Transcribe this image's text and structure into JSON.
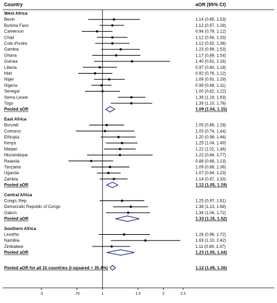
{
  "chart_data": {
    "type": "forest",
    "columns": {
      "left": "Country",
      "right": "aOR (95% CI)"
    },
    "x_scale": "log",
    "xlim": [
      0.5,
      2.5
    ],
    "reference_line": 1,
    "x_ticks": [
      {
        "value": 0.5,
        "label": ".5"
      },
      {
        "value": 0.75,
        "label": ".75"
      },
      {
        "value": 1,
        "label": "1"
      },
      {
        "value": 1.5,
        "label": "1.5"
      },
      {
        "value": 2,
        "label": "2"
      },
      {
        "value": 2.5,
        "label": "2.5"
      }
    ],
    "groups": [
      {
        "name": "West Africa",
        "rows": [
          {
            "label": "Benin",
            "or": 1.14,
            "lo": 0.85,
            "hi": 1.53,
            "text": "1.14 (0.85, 1.53)"
          },
          {
            "label": "Burkina Faso",
            "or": 1.12,
            "lo": 0.97,
            "hi": 1.28,
            "text": "1.12 (0.97, 1.28)"
          },
          {
            "label": "Cameroon",
            "or": 0.94,
            "lo": 0.79,
            "hi": 1.12,
            "text": "0.94 (0.79, 1.12)"
          },
          {
            "label": "Chad",
            "or": 1.12,
            "lo": 0.94,
            "hi": 1.33,
            "text": "1.12 (0.94, 1.33)"
          },
          {
            "label": "Cote d'Ivoire",
            "or": 1.12,
            "lo": 0.92,
            "hi": 1.36,
            "text": "1.12 (0.92, 1.36)"
          },
          {
            "label": "Gambia",
            "or": 1.23,
            "lo": 0.99,
            "hi": 1.53,
            "text": "1.23 (0.99, 1.53)"
          },
          {
            "label": "Ghana",
            "or": 1.17,
            "lo": 0.89,
            "hi": 1.54,
            "text": "1.17 (0.89, 1.54)"
          },
          {
            "label": "Guinea",
            "or": 1.4,
            "lo": 0.91,
            "hi": 2.16,
            "text": "1.40 (0.91, 2.16)"
          },
          {
            "label": "Liberia",
            "or": 0.97,
            "lo": 0.8,
            "hi": 1.18,
            "text": "0.97 (0.80, 1.18)"
          },
          {
            "label": "Mali",
            "or": 0.92,
            "lo": 0.76,
            "hi": 1.12,
            "text": "0.92 (0.76, 1.12)"
          },
          {
            "label": "Niger",
            "or": 1.08,
            "lo": 0.91,
            "hi": 1.29,
            "text": "1.08 (0.91, 1.29)"
          },
          {
            "label": "Nigeria",
            "or": 0.99,
            "lo": 0.88,
            "hi": 1.11,
            "text": "0.99 (0.88, 1.11)"
          },
          {
            "label": "Senegal",
            "or": 1.0,
            "lo": 0.82,
            "hi": 1.22,
            "text": "1.00 (0.82, 1.22)"
          },
          {
            "label": "Sierra Leone",
            "or": 1.39,
            "lo": 1.19,
            "hi": 1.63,
            "text": "1.39 (1.19, 1.63)"
          },
          {
            "label": "Togo",
            "or": 1.39,
            "lo": 1.1,
            "hi": 1.76,
            "text": "1.39 (1.10, 1.76)"
          }
        ],
        "pooled": {
          "label": "Pooled aOR",
          "or": 1.09,
          "lo": 1.04,
          "hi": 1.15,
          "text": "1.09 (1.04, 1.15)"
        }
      },
      {
        "name": "East Africa",
        "rows": [
          {
            "label": "Burundi",
            "or": 1.05,
            "lo": 0.86,
            "hi": 1.28,
            "text": "1.05 (0.86, 1.28)"
          },
          {
            "label": "Comoros",
            "or": 1.03,
            "lo": 0.74,
            "hi": 1.44,
            "text": "1.03 (0.74, 1.44)"
          },
          {
            "label": "Ethiopia",
            "or": 1.2,
            "lo": 0.98,
            "hi": 1.46,
            "text": "1.20 (0.98, 1.46)"
          },
          {
            "label": "Kenya",
            "or": 1.25,
            "lo": 1.04,
            "hi": 1.49,
            "text": "1.25 (1.04, 1.49)"
          },
          {
            "label": "Malawi",
            "or": 1.22,
            "lo": 1.02,
            "hi": 1.46,
            "text": "1.22 (1.02, 1.46)"
          },
          {
            "label": "Mozambique",
            "or": 1.22,
            "lo": 0.84,
            "hi": 1.77,
            "text": "1.22 (0.84, 1.77)"
          },
          {
            "label": "Rwanda",
            "or": 0.88,
            "lo": 0.68,
            "hi": 1.13,
            "text": "0.88 (0.68, 1.13)"
          },
          {
            "label": "Tanzania",
            "or": 1.09,
            "lo": 0.88,
            "hi": 1.36,
            "text": "1.09 (0.88, 1.36)"
          },
          {
            "label": "Uganda",
            "or": 1.07,
            "lo": 0.94,
            "hi": 1.23,
            "text": "1.07 (0.94, 1.23)"
          },
          {
            "label": "Zambia",
            "or": 1.14,
            "lo": 0.97,
            "hi": 1.33,
            "text": "1.14 (0.97, 1.33)"
          }
        ],
        "pooled": {
          "label": "Pooled aOR",
          "or": 1.12,
          "lo": 1.05,
          "hi": 1.19,
          "text": "1.12 (1.05, 1.19)"
        }
      },
      {
        "name": "Central Africa",
        "rows": [
          {
            "label": "Congo, Rep.",
            "or": 1.25,
            "lo": 0.97,
            "hi": 1.61,
            "text": "1.25 (0.97, 1.61)"
          },
          {
            "label": "Democratic Republic of Congo",
            "or": 1.38,
            "lo": 1.13,
            "hi": 1.68,
            "text": "1.38 (1.13, 1.68)"
          },
          {
            "label": "Gabon",
            "or": 1.34,
            "lo": 1.04,
            "hi": 1.72,
            "text": "1.34 (1.04, 1.72)"
          }
        ],
        "pooled": {
          "label": "Pooled aOR",
          "or": 1.33,
          "lo": 1.16,
          "hi": 1.52,
          "text": "1.33 (1.16, 1.52)"
        }
      },
      {
        "name": "Southern Africa",
        "rows": [
          {
            "label": "Lesotho",
            "or": 1.28,
            "lo": 0.96,
            "hi": 1.72,
            "text": "1.28 (0.96, 1.72)"
          },
          {
            "label": "Namibia",
            "or": 1.63,
            "lo": 1.1,
            "hi": 2.42,
            "text": "1.63 (1.10, 2.42)"
          },
          {
            "label": "Zimbabwe",
            "or": 1.11,
            "lo": 0.89,
            "hi": 1.37,
            "text": "1.11 (0.89, 1.37)"
          }
        ],
        "pooled": {
          "label": "Pooled aOR",
          "or": 1.23,
          "lo": 1.05,
          "hi": 1.44,
          "text": "1.23 (1.05, 1.44)"
        }
      }
    ],
    "overall": {
      "label": "Pooled aOR for all 31 countries (I-squared = 35.4%)",
      "or": 1.12,
      "lo": 1.09,
      "hi": 1.16,
      "text": "1.12 (1.09, 1.16)"
    },
    "colors": {
      "ink": "#111111",
      "diamond": "#1f2a7a"
    }
  }
}
